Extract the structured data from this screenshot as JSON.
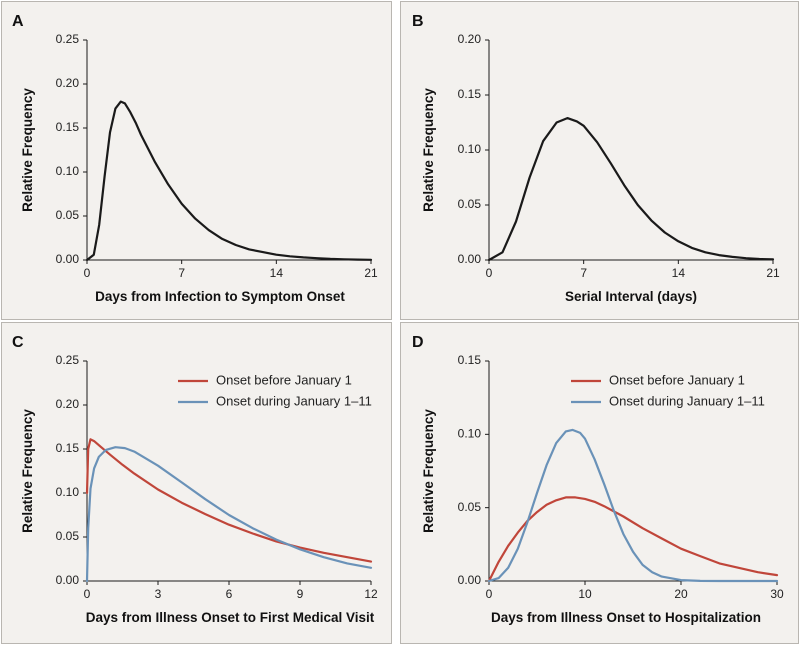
{
  "figure": {
    "colors": {
      "single": "#1a1a1a",
      "onset_before": "#c0463a",
      "onset_during": "#6a92b8"
    }
  },
  "chart_data": [
    {
      "panel": "A",
      "type": "line",
      "title": "",
      "xlabel": "Days from Infection to Symptom Onset",
      "ylabel": "Relative Frequency",
      "xlim": [
        0,
        21
      ],
      "ylim": [
        0,
        0.25
      ],
      "xticks": [
        0,
        7,
        14,
        21
      ],
      "yticks": [
        0.0,
        0.05,
        0.1,
        0.15,
        0.2,
        0.25
      ],
      "xtick_labels": [
        "0",
        "7",
        "14",
        "21"
      ],
      "ytick_labels": [
        "0.00",
        "0.05",
        "0.10",
        "0.15",
        "0.20",
        "0.25"
      ],
      "legend": [],
      "series": [
        {
          "color_key": "single",
          "x": [
            0,
            0.5,
            0.9,
            1.3,
            1.7,
            2.1,
            2.5,
            2.8,
            3.2,
            3.6,
            4,
            5,
            6,
            7,
            8,
            9,
            10,
            11,
            12,
            13,
            14,
            15,
            16,
            17,
            18,
            19,
            20,
            21
          ],
          "y": [
            0,
            0.006,
            0.04,
            0.095,
            0.145,
            0.172,
            0.18,
            0.178,
            0.168,
            0.156,
            0.142,
            0.112,
            0.086,
            0.064,
            0.047,
            0.034,
            0.024,
            0.017,
            0.012,
            0.009,
            0.006,
            0.0042,
            0.003,
            0.002,
            0.0013,
            0.0008,
            0.0004,
            0.0002
          ]
        }
      ]
    },
    {
      "panel": "B",
      "type": "line",
      "title": "",
      "xlabel": "Serial Interval (days)",
      "ylabel": "Relative Frequency",
      "xlim": [
        0,
        21
      ],
      "ylim": [
        0,
        0.2
      ],
      "xticks": [
        0,
        7,
        14,
        21
      ],
      "yticks": [
        0.0,
        0.05,
        0.1,
        0.15,
        0.2
      ],
      "xtick_labels": [
        "0",
        "7",
        "14",
        "21"
      ],
      "ytick_labels": [
        "0.00",
        "0.05",
        "0.10",
        "0.15",
        "0.20"
      ],
      "legend": [],
      "series": [
        {
          "color_key": "single",
          "x": [
            0,
            1,
            2,
            3,
            4,
            5,
            5.8,
            6.5,
            7,
            8,
            9,
            10,
            11,
            12,
            13,
            14,
            15,
            16,
            17,
            18,
            19,
            20,
            21
          ],
          "y": [
            0,
            0.007,
            0.035,
            0.075,
            0.108,
            0.125,
            0.129,
            0.126,
            0.122,
            0.107,
            0.088,
            0.068,
            0.05,
            0.036,
            0.025,
            0.017,
            0.011,
            0.007,
            0.0045,
            0.0028,
            0.0016,
            0.0009,
            0.0005
          ]
        }
      ]
    },
    {
      "panel": "C",
      "type": "line",
      "title": "",
      "xlabel": "Days from Illness Onset to First Medical Visit",
      "ylabel": "Relative Frequency",
      "xlim": [
        0,
        12
      ],
      "ylim": [
        0,
        0.25
      ],
      "xticks": [
        0,
        3,
        6,
        9,
        12
      ],
      "yticks": [
        0.0,
        0.05,
        0.1,
        0.15,
        0.2,
        0.25
      ],
      "xtick_labels": [
        "0",
        "3",
        "6",
        "9",
        "12"
      ],
      "ytick_labels": [
        "0.00",
        "0.05",
        "0.10",
        "0.15",
        "0.20",
        "0.25"
      ],
      "legend": [
        "Onset before January 1",
        "Onset during January 1–11"
      ],
      "series": [
        {
          "name": "Onset before January 1",
          "color_key": "onset_before",
          "x": [
            0,
            0.05,
            0.15,
            0.3,
            0.6,
            1,
            1.5,
            2,
            3,
            4,
            5,
            6,
            7,
            8,
            9,
            10,
            11,
            12
          ],
          "y": [
            0.1,
            0.15,
            0.161,
            0.159,
            0.152,
            0.143,
            0.132,
            0.122,
            0.104,
            0.089,
            0.076,
            0.064,
            0.054,
            0.045,
            0.038,
            0.032,
            0.027,
            0.022
          ]
        },
        {
          "name": "Onset during January 1–11",
          "color_key": "onset_during",
          "x": [
            0,
            0.05,
            0.15,
            0.3,
            0.5,
            0.8,
            1.2,
            1.6,
            2,
            3,
            4,
            5,
            6,
            7,
            8,
            9,
            10,
            11,
            12
          ],
          "y": [
            0,
            0.06,
            0.105,
            0.128,
            0.141,
            0.149,
            0.152,
            0.151,
            0.147,
            0.131,
            0.112,
            0.093,
            0.075,
            0.06,
            0.047,
            0.036,
            0.027,
            0.02,
            0.015
          ]
        }
      ]
    },
    {
      "panel": "D",
      "type": "line",
      "title": "",
      "xlabel": "Days from Illness Onset to Hospitalization",
      "ylabel": "Relative Frequency",
      "xlim": [
        0,
        30
      ],
      "ylim": [
        0,
        0.15
      ],
      "xticks": [
        0,
        10,
        20,
        30
      ],
      "yticks": [
        0.0,
        0.05,
        0.1,
        0.15
      ],
      "xtick_labels": [
        "0",
        "10",
        "20",
        "30"
      ],
      "ytick_labels": [
        "0.00",
        "0.05",
        "0.10",
        "0.15"
      ],
      "legend": [
        "Onset before January 1",
        "Onset during January 1–11"
      ],
      "series": [
        {
          "name": "Onset before January 1",
          "color_key": "onset_before",
          "x": [
            0,
            1,
            2,
            3,
            4,
            5,
            6,
            7,
            8,
            9,
            10,
            11,
            12,
            14,
            16,
            18,
            20,
            22,
            24,
            26,
            28,
            30
          ],
          "y": [
            0,
            0.013,
            0.024,
            0.033,
            0.041,
            0.047,
            0.052,
            0.055,
            0.057,
            0.057,
            0.056,
            0.054,
            0.051,
            0.044,
            0.036,
            0.029,
            0.022,
            0.017,
            0.012,
            0.009,
            0.006,
            0.004
          ]
        },
        {
          "name": "Onset during January 1–11",
          "color_key": "onset_during",
          "x": [
            0,
            1,
            2,
            3,
            4,
            5,
            6,
            7,
            8,
            8.7,
            9.5,
            10,
            11,
            12,
            13,
            14,
            15,
            16,
            17,
            18,
            20,
            22,
            24,
            26,
            28,
            30
          ],
          "y": [
            0,
            0.002,
            0.009,
            0.022,
            0.04,
            0.06,
            0.079,
            0.094,
            0.102,
            0.103,
            0.101,
            0.097,
            0.083,
            0.066,
            0.048,
            0.032,
            0.02,
            0.011,
            0.006,
            0.003,
            0.0006,
            0.0001,
            0,
            0,
            0,
            0
          ]
        }
      ]
    }
  ]
}
